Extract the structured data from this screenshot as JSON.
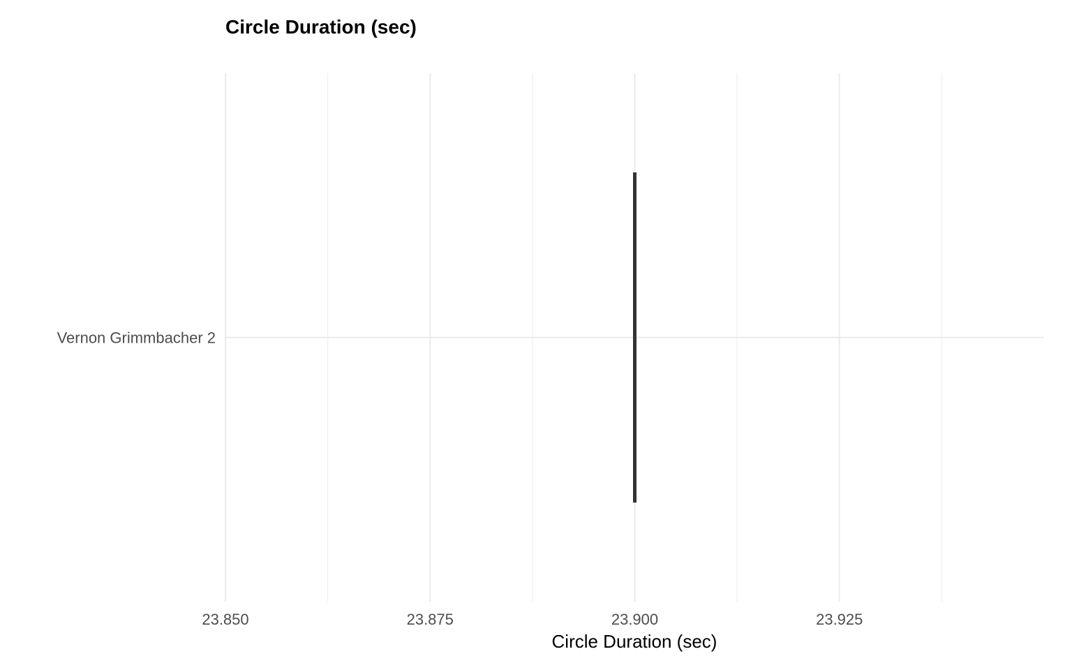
{
  "chart_data": {
    "type": "boxplot",
    "title": "Circle Duration (sec)",
    "xlabel": "Circle Duration (sec)",
    "ylabel": "",
    "orientation": "horizontal",
    "categories": [
      "Vernon Grimmbacher 2"
    ],
    "series": [
      {
        "values": [
          {
            "category": "Vernon Grimmbacher 2",
            "min": 23.9,
            "q1": 23.9,
            "median": 23.9,
            "q3": 23.9,
            "max": 23.9
          }
        ]
      }
    ],
    "xlim": [
      23.85,
      23.95
    ],
    "x_ticks": [
      23.85,
      23.875,
      23.9,
      23.925
    ],
    "x_tick_labels": [
      "23.850",
      "23.875",
      "23.900",
      "23.925"
    ],
    "grid": true,
    "legend": "none",
    "colors": {
      "box_line": "#333333",
      "grid": "#ebebeb",
      "tick_text": "#4d4d4d",
      "title_text": "#000000"
    }
  }
}
